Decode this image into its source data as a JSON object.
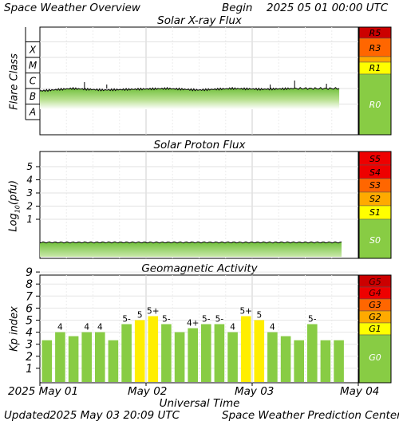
{
  "header": {
    "title": "Space Weather Overview",
    "begin_label": "Begin",
    "begin_date": "2025 05 01 00:00 UTC"
  },
  "footer": {
    "updated_label": "Updated",
    "updated_date": "2025 May 03 20:09 UTC",
    "credit": "Space Weather Prediction Center"
  },
  "x_axis": {
    "label": "Universal Time",
    "ticks": [
      "2025 May 01",
      "May 02",
      "May 03",
      "May 04"
    ]
  },
  "colors": {
    "extreme": "#cc0000",
    "severe": "#ee0000",
    "strong": "#ff6600",
    "moderate": "#ffaa00",
    "minor": "#ffff00",
    "quiet": "#88cc44",
    "bar_green": "#88cc44",
    "bar_yellow": "#ffee00"
  },
  "chart_data": [
    {
      "type": "area",
      "title": "Solar X-ray Flux",
      "ylabel": "Flare Class",
      "y_classes": [
        "X",
        "M",
        "C",
        "B",
        "A"
      ],
      "scales": [
        {
          "label": "R5",
          "color": "#cc0000"
        },
        {
          "label": "R3",
          "color": "#ff6600"
        },
        {
          "label": "R1",
          "color": "#ffff00"
        },
        {
          "label": "R0",
          "color": "#88cc44"
        }
      ],
      "series": [
        {
          "x_days": [
            0,
            0.3,
            0.6,
            0.9,
            1.2,
            1.5,
            1.8,
            2.1,
            2.4,
            2.82
          ],
          "class": [
            "B7",
            "C1",
            "B8",
            "B9",
            "C1",
            "B8",
            "C1",
            "B9",
            "C1",
            "C1"
          ]
        }
      ]
    },
    {
      "type": "area",
      "title": "Solar Proton Flux",
      "ylabel": "Log10(pfu)",
      "yticks": [
        "5",
        "4",
        "3",
        "2",
        "1"
      ],
      "scales": [
        {
          "label": "S5",
          "color": "#ee0000"
        },
        {
          "label": "S4",
          "color": "#ee0000"
        },
        {
          "label": "S3",
          "color": "#ff6600"
        },
        {
          "label": "S2",
          "color": "#ffaa00"
        },
        {
          "label": "S1",
          "color": "#ffff00"
        },
        {
          "label": "S0",
          "color": "#88cc44"
        }
      ],
      "series": [
        {
          "level": "below 1 (background)"
        }
      ]
    },
    {
      "type": "bar",
      "title": "Geomagnetic Activity",
      "ylabel": "Kp index",
      "ylim": [
        0,
        9
      ],
      "yticks": [
        "9",
        "8",
        "7",
        "6",
        "5",
        "4",
        "3",
        "2",
        "1"
      ],
      "scales": [
        {
          "label": "G5",
          "color": "#cc0000"
        },
        {
          "label": "G4",
          "color": "#ee0000"
        },
        {
          "label": "G3",
          "color": "#ff6600"
        },
        {
          "label": "G2",
          "color": "#ffaa00"
        },
        {
          "label": "G1",
          "color": "#ffff00"
        },
        {
          "label": "G0",
          "color": "#88cc44"
        }
      ],
      "values": [
        3.33,
        4,
        3.67,
        4,
        4,
        3.33,
        4.67,
        5,
        5.33,
        4.67,
        4,
        4.33,
        4.67,
        4.67,
        4,
        5.33,
        5,
        4,
        3.67,
        3.33,
        4.67,
        3.33,
        3.33
      ],
      "labels": [
        "",
        "4",
        "",
        "4",
        "4",
        "",
        "5-",
        "5",
        "5+",
        "5-",
        "",
        "4+",
        "5-",
        "5-",
        "4",
        "5+",
        "5",
        "4",
        "",
        "",
        "5-",
        "",
        ""
      ],
      "colors": [
        "green",
        "green",
        "green",
        "green",
        "green",
        "green",
        "green",
        "yellow",
        "yellow",
        "green",
        "green",
        "green",
        "green",
        "green",
        "green",
        "yellow",
        "yellow",
        "green",
        "green",
        "green",
        "green",
        "green",
        "green"
      ]
    }
  ]
}
